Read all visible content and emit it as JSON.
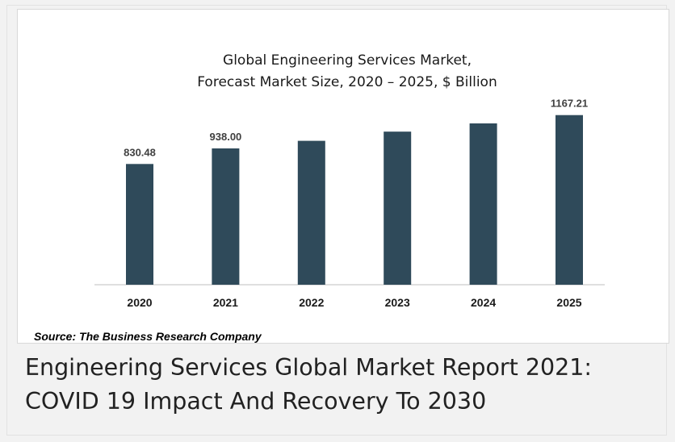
{
  "chart_data": {
    "type": "bar",
    "title_lines": [
      "Global Engineering Services Market,",
      "Forecast Market Size, 2020 – 2025, $ Billion"
    ],
    "categories": [
      "2020",
      "2021",
      "2022",
      "2023",
      "2024",
      "2025"
    ],
    "values": [
      830.48,
      938.0,
      990,
      1053,
      1110,
      1167.21
    ],
    "data_labels": [
      "830.48",
      "938.00",
      "",
      "",
      "",
      "1167.21"
    ],
    "bar_color": "#2f4a5a",
    "ylim": [
      0,
      1300
    ],
    "grid": false,
    "legend": "none"
  },
  "source_note": "Source: The Business Research Company",
  "caption": {
    "line1": "Engineering Services Global Market Report 2021:",
    "line2": "COVID 19 Impact And Recovery To 2030"
  }
}
